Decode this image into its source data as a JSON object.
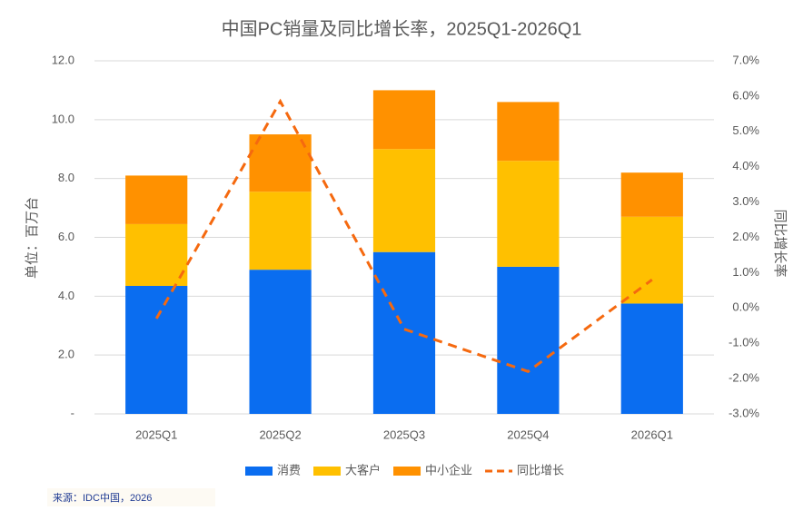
{
  "chart_data": {
    "type": "bar",
    "title": "中国PC销量及同比增长率，2025Q1-2026Q1",
    "y_label": "单位：百万台",
    "y2_label": "同比增长率",
    "source": "来源：IDC中国，2026",
    "categories": [
      "2025Q1",
      "2025Q2",
      "2025Q3",
      "2025Q4",
      "2026Q1"
    ],
    "series": [
      {
        "name": "消费",
        "color": "#0a6df0",
        "values": [
          4.35,
          4.9,
          5.5,
          5.0,
          3.75
        ]
      },
      {
        "name": "大客户",
        "color": "#ffc000",
        "values": [
          2.1,
          2.65,
          3.5,
          3.6,
          2.95
        ]
      },
      {
        "name": "中小企业",
        "color": "#ff9100",
        "values": [
          1.65,
          1.95,
          2.0,
          2.0,
          1.5
        ]
      },
      {
        "name": "同比增长",
        "color": "#f5690f",
        "type": "line",
        "axis": "y2",
        "dashed": true,
        "values": [
          -0.3,
          5.85,
          -0.6,
          -1.8,
          0.8
        ]
      }
    ],
    "ylim": [
      0,
      12
    ],
    "yticks": [
      {
        "value": 0,
        "label": "-"
      },
      {
        "value": 2,
        "label": "2.0"
      },
      {
        "value": 4,
        "label": "4.0"
      },
      {
        "value": 6,
        "label": "6.0"
      },
      {
        "value": 8,
        "label": "8.0"
      },
      {
        "value": 10,
        "label": "10.0"
      },
      {
        "value": 12,
        "label": "12.0"
      }
    ],
    "y2lim": [
      -3,
      7
    ],
    "y2ticks": [
      {
        "value": -3,
        "label": "-3.0%"
      },
      {
        "value": -2,
        "label": "-2.0%"
      },
      {
        "value": -1,
        "label": "-1.0%"
      },
      {
        "value": 0,
        "label": "0.0%"
      },
      {
        "value": 1,
        "label": "1.0%"
      },
      {
        "value": 2,
        "label": "2.0%"
      },
      {
        "value": 3,
        "label": "3.0%"
      },
      {
        "value": 4,
        "label": "4.0%"
      },
      {
        "value": 5,
        "label": "5.0%"
      },
      {
        "value": 6,
        "label": "6.0%"
      },
      {
        "value": 7,
        "label": "7.0%"
      }
    ],
    "grid": true,
    "stacked": true,
    "legend": "bottom"
  }
}
